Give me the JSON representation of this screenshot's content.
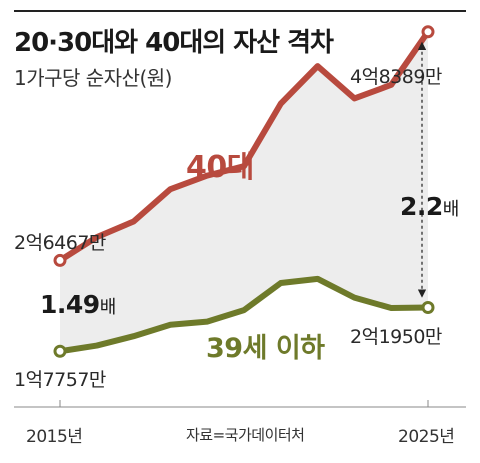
{
  "chart_data": {
    "type": "line",
    "title": "20·30대와 40대의 자산 격차",
    "subtitle": "1가구당 순자산(원)",
    "x_start_label": "2015년",
    "x_end_label": "2025년",
    "source": "자료=국가데이터처",
    "ylim": [
      15000,
      50000
    ],
    "series": [
      {
        "name": "40대",
        "color": "#b84a3e",
        "values": [
          26467,
          28700,
          30200,
          33300,
          34600,
          35500,
          41500,
          45100,
          42000,
          43300,
          48389
        ],
        "start_label": "2억6467만",
        "end_label": "4억8389만"
      },
      {
        "name": "39세 이하",
        "color": "#6e7a2a",
        "values": [
          17757,
          18300,
          19200,
          20300,
          20600,
          21700,
          24300,
          24700,
          22900,
          21900,
          21950
        ],
        "start_label": "1억7757만",
        "end_label": "2억1950만"
      }
    ],
    "annotations": [
      {
        "text": "1.49",
        "unit": "배",
        "at": "start"
      },
      {
        "text": "2.2",
        "unit": "배",
        "at": "end"
      }
    ],
    "fill_between_color": "#ededed"
  }
}
